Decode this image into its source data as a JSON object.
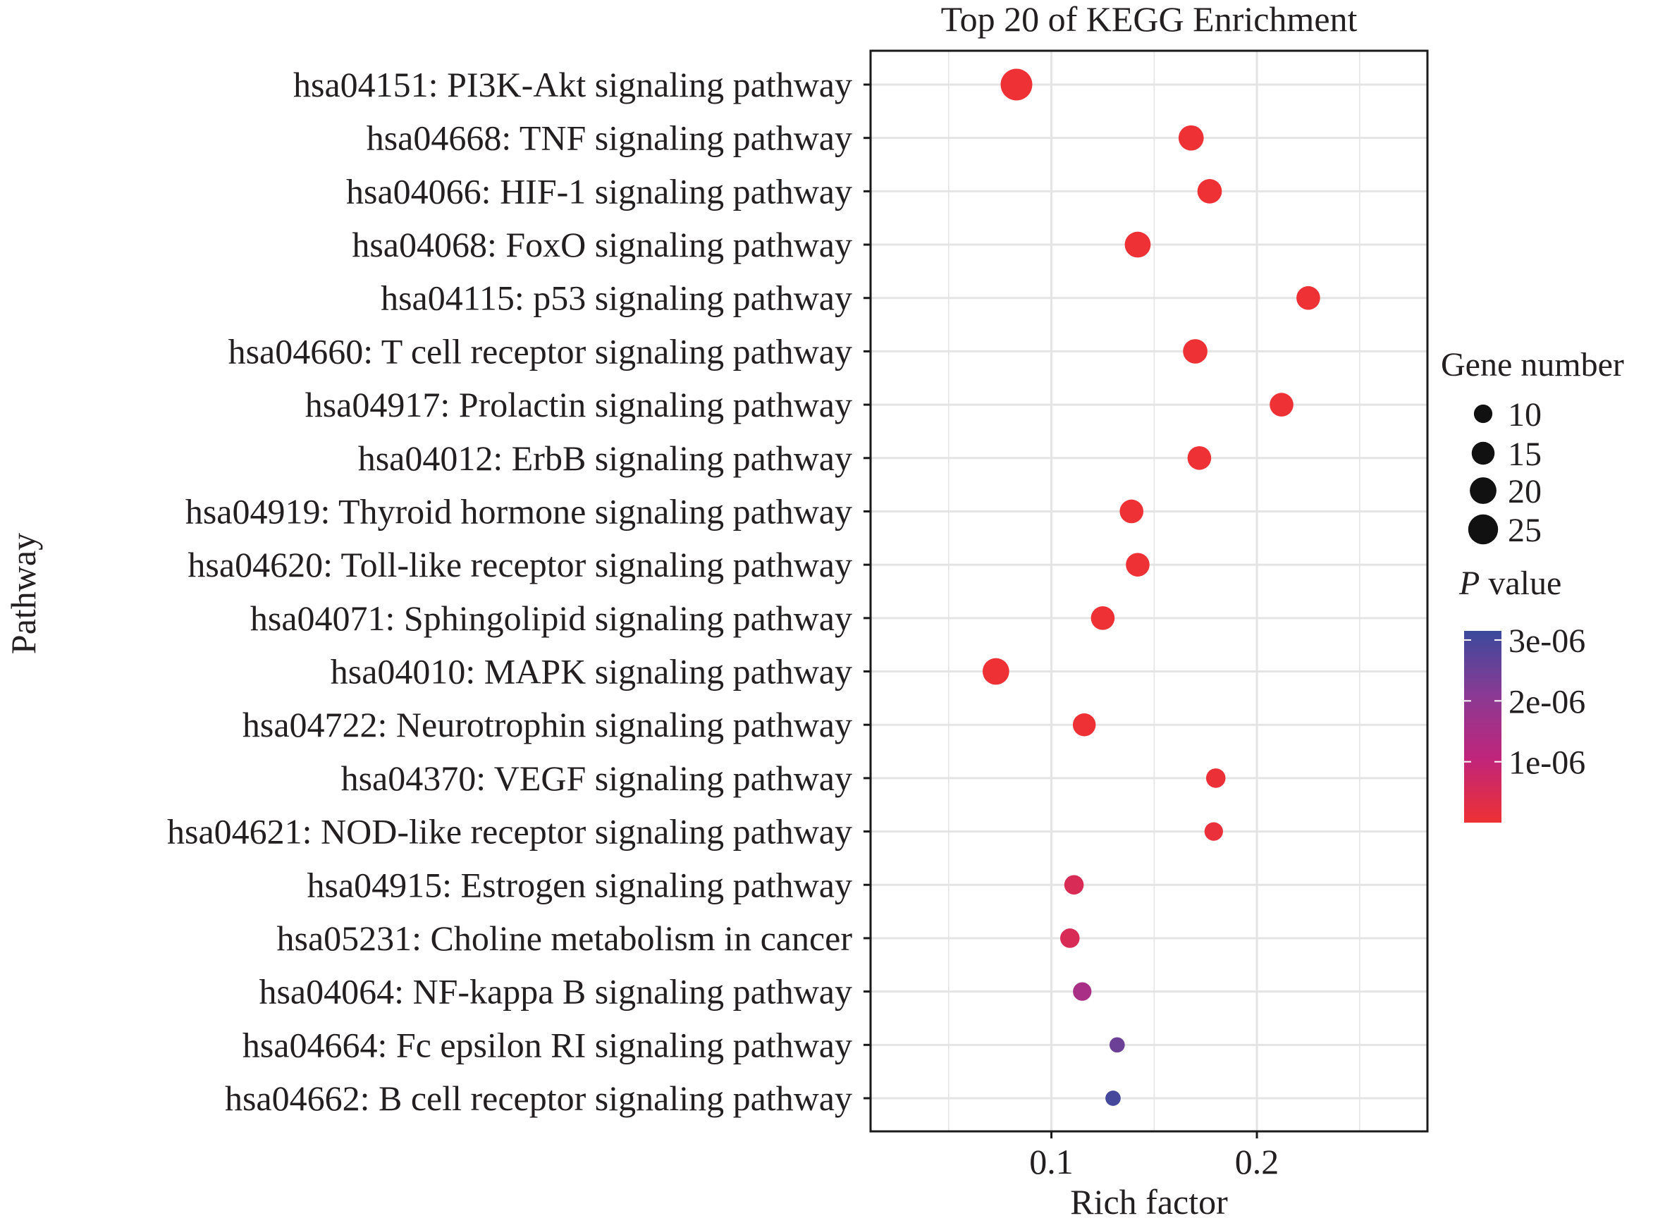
{
  "chart_data": {
    "type": "scatter",
    "title": "Top 20 of KEGG Enrichment",
    "xlabel": "Rich factor",
    "ylabel": "Pathway",
    "xlim": [
      0.012,
      0.283
    ],
    "xticks": [
      0.1,
      0.2
    ],
    "xtick_labels": [
      "0.1",
      "0.2"
    ],
    "grid": true,
    "size_legend": {
      "title": "Gene number",
      "values": [
        10,
        15,
        20,
        25
      ],
      "labels": [
        "10",
        "15",
        "20",
        "25"
      ]
    },
    "color_legend": {
      "title_italic": "P",
      "title_rest": " value",
      "min": 0,
      "max": 3.15e-06,
      "ticks": [
        3e-06,
        2e-06,
        1e-06
      ],
      "tick_labels": [
        "3e-06",
        "2e-06",
        "1e-06"
      ],
      "colors": [
        "#ee3134",
        "#c0257a",
        "#8a3a94",
        "#3b4a9c"
      ]
    },
    "points": [
      {
        "pathway": "hsa04151: PI3K-Akt signaling pathway",
        "rich_factor": 0.083,
        "gene_number": 28,
        "p_value": 1e-08
      },
      {
        "pathway": "hsa04668: TNF signaling pathway",
        "rich_factor": 0.168,
        "gene_number": 18,
        "p_value": 1e-08
      },
      {
        "pathway": "hsa04066: HIF-1 signaling pathway",
        "rich_factor": 0.177,
        "gene_number": 17,
        "p_value": 1e-08
      },
      {
        "pathway": "hsa04068: FoxO signaling pathway",
        "rich_factor": 0.142,
        "gene_number": 19,
        "p_value": 1e-08
      },
      {
        "pathway": "hsa04115: p53 signaling pathway",
        "rich_factor": 0.225,
        "gene_number": 16,
        "p_value": 1e-08
      },
      {
        "pathway": "hsa04660: T cell receptor signaling pathway",
        "rich_factor": 0.17,
        "gene_number": 17,
        "p_value": 1e-08
      },
      {
        "pathway": "hsa04917: Prolactin signaling pathway",
        "rich_factor": 0.212,
        "gene_number": 16,
        "p_value": 1e-08
      },
      {
        "pathway": "hsa04012: ErbB signaling pathway",
        "rich_factor": 0.172,
        "gene_number": 16,
        "p_value": 1e-08
      },
      {
        "pathway": "hsa04919: Thyroid hormone signaling pathway",
        "rich_factor": 0.139,
        "gene_number": 16,
        "p_value": 1e-08
      },
      {
        "pathway": "hsa04620: Toll-like receptor signaling pathway",
        "rich_factor": 0.142,
        "gene_number": 16,
        "p_value": 1e-08
      },
      {
        "pathway": "hsa04071: Sphingolipid signaling pathway",
        "rich_factor": 0.125,
        "gene_number": 16,
        "p_value": 1e-08
      },
      {
        "pathway": "hsa04010: MAPK signaling pathway",
        "rich_factor": 0.073,
        "gene_number": 20,
        "p_value": 1e-08
      },
      {
        "pathway": "hsa04722: Neurotrophin signaling pathway",
        "rich_factor": 0.116,
        "gene_number": 15,
        "p_value": 1e-08
      },
      {
        "pathway": "hsa04370: VEGF signaling pathway",
        "rich_factor": 0.18,
        "gene_number": 11,
        "p_value": 5e-08
      },
      {
        "pathway": "hsa04621: NOD-like receptor signaling pathway",
        "rich_factor": 0.179,
        "gene_number": 10,
        "p_value": 1e-07
      },
      {
        "pathway": "hsa04915: Estrogen signaling pathway",
        "rich_factor": 0.111,
        "gene_number": 11,
        "p_value": 5e-07
      },
      {
        "pathway": "hsa05231: Choline metabolism in cancer",
        "rich_factor": 0.109,
        "gene_number": 11,
        "p_value": 5e-07
      },
      {
        "pathway": "hsa04064: NF-kappa B signaling pathway",
        "rich_factor": 0.115,
        "gene_number": 10,
        "p_value": 1.5e-06
      },
      {
        "pathway": "hsa04664: Fc epsilon RI signaling pathway",
        "rich_factor": 0.132,
        "gene_number": 7,
        "p_value": 2.5e-06
      },
      {
        "pathway": "hsa04662: B cell receptor signaling pathway",
        "rich_factor": 0.13,
        "gene_number": 7,
        "p_value": 3e-06
      }
    ]
  }
}
